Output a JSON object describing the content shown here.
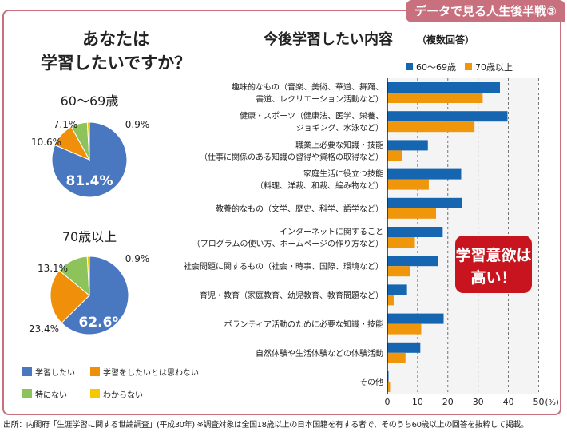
{
  "tab_label": "データで見る人生後半戦③",
  "left_title": [
    "あなたは",
    "学習したいですか？"
  ],
  "pies": [
    {
      "title": "60〜69歳",
      "values": [
        81.4,
        10.6,
        7.1,
        0.9
      ],
      "labels": [
        "81.4%",
        "10.6%",
        "7.1%",
        "0.9%"
      ]
    },
    {
      "title": "70歳以上",
      "values": [
        62.6,
        23.4,
        13.1,
        0.9
      ],
      "labels": [
        "62.6%",
        "23.4%",
        "13.1%",
        "0.9%"
      ]
    }
  ],
  "pie_legend": [
    "学習したい",
    "学習をしたいとは思わない",
    "特にない",
    "わからない"
  ],
  "pie_colors": [
    "#4a78c0",
    "#f0900a",
    "#8cc35a",
    "#f5c800"
  ],
  "chart_data": {
    "type": "bar",
    "orientation": "horizontal",
    "title": "今後学習したい内容",
    "subtitle": "（複数回答）",
    "categories": [
      [
        "趣味的なもの（音楽、美術、華道、舞踊、",
        "書道、レクリエーション活動など）"
      ],
      [
        "健康・スポーツ（健康法、医学、栄養、",
        "ジョギング、水泳など）"
      ],
      [
        "職業上必要な知識・技能",
        "（仕事に関係のある知識の習得や資格の取得など）"
      ],
      [
        "家庭生活に役立つ技能",
        "（料理、洋裁、和裁、編み物など）"
      ],
      [
        "教養的なもの（文学、歴史、科学、語学など）"
      ],
      [
        "インターネットに関すること",
        "（プログラムの使い方、ホームページの作り方など）"
      ],
      [
        "社会問題に関するもの（社会・時事、国際、環境など）"
      ],
      [
        "育児・教育（家庭教育、幼児教育、教育問題など）"
      ],
      [
        "ボランティア活動のために必要な知識・技能"
      ],
      [
        "自然体験や生活体験などの体験活動"
      ],
      [
        "その他"
      ]
    ],
    "series": [
      {
        "name": "60〜69歳",
        "color": "#1565b0",
        "values": [
          37.2,
          39.7,
          13.4,
          24.4,
          24.8,
          18.3,
          16.8,
          6.5,
          18.6,
          10.9,
          0.4
        ]
      },
      {
        "name": "70歳以上",
        "color": "#f0960a",
        "values": [
          31.5,
          28.8,
          4.9,
          13.7,
          16.1,
          9.1,
          7.4,
          2.1,
          11.2,
          6.0,
          0.9
        ]
      }
    ],
    "xlim": [
      0,
      50
    ],
    "xticks": [
      "0",
      "10",
      "20",
      "30",
      "40",
      "50"
    ],
    "xunit": "(%)",
    "grid": true,
    "legend": "top-right"
  },
  "callout": [
    "学習意欲は",
    "高い！"
  ],
  "footer": "出所：内閣府「生涯学習に関する世論調査」(平成30年) ※調査対象は全国18歳以上の日本国籍を有する者で、そのうち60歳以上の回答を抜粋して掲載。"
}
